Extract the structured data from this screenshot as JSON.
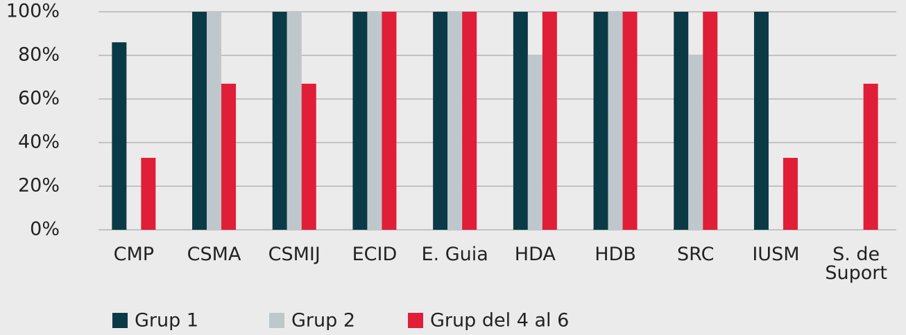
{
  "chart_data": {
    "type": "bar",
    "categories": [
      "CMP",
      "CSMA",
      "CSMIJ",
      "ECID",
      "E. Guia",
      "HDA",
      "HDB",
      "SRC",
      "IUSM",
      "S. de Suport"
    ],
    "series": [
      {
        "name": "Grup 1",
        "color": "#0b3a47",
        "values": [
          86,
          100,
          100,
          100,
          100,
          100,
          100,
          100,
          100,
          0
        ]
      },
      {
        "name": "Grup 2",
        "color": "#bec8cc",
        "values": [
          0,
          100,
          100,
          100,
          100,
          80,
          100,
          80,
          0,
          0
        ]
      },
      {
        "name": "Grup del 4 al 6",
        "color": "#e01e37",
        "values": [
          33,
          67,
          67,
          100,
          100,
          100,
          100,
          100,
          33,
          67
        ]
      }
    ],
    "ylim": [
      0,
      100
    ],
    "yticks": [
      {
        "value": 0,
        "label": "0%"
      },
      {
        "value": 20,
        "label": "20%"
      },
      {
        "value": 40,
        "label": "40%"
      },
      {
        "value": 60,
        "label": "60%"
      },
      {
        "value": 80,
        "label": "80%"
      },
      {
        "value": 100,
        "label": "100%"
      }
    ],
    "grid": true
  }
}
